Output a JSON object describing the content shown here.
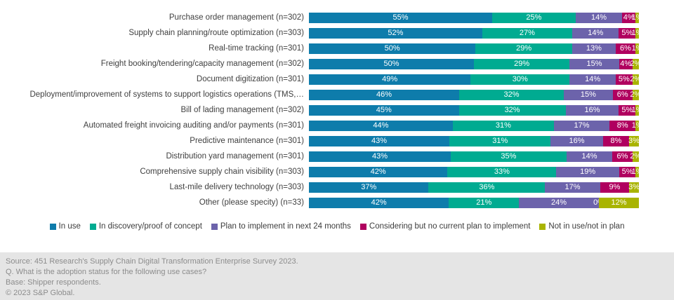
{
  "chart_data": {
    "type": "bar",
    "stacked": true,
    "orientation": "horizontal",
    "value_suffix": "%",
    "xlim": [
      0,
      100
    ],
    "grid": false,
    "legend_position": "bottom",
    "categories": [
      "Purchase order management (n=302)",
      "Supply chain planning/route optimization (n=303)",
      "Real-time tracking (n=301)",
      "Freight booking/tendering/capacity management (n=302)",
      "Document digitization (n=301)",
      "Deployment/improvement of systems to support logistics operations (TMS,…",
      "Bill of lading management (n=302)",
      "Automated freight invoicing auditing and/or payments (n=301)",
      "Predictive maintenance (n=301)",
      "Distribution yard management (n=301)",
      "Comprehensive supply chain visibility (n=303)",
      "Last-mile delivery technology (n=303)",
      "Other (please specity) (n=33)"
    ],
    "series": [
      {
        "name": "In use",
        "color": "#0e7cab",
        "values": [
          55,
          52,
          50,
          50,
          49,
          46,
          45,
          44,
          43,
          43,
          42,
          37,
          42
        ]
      },
      {
        "name": "In discovery/proof of concept",
        "color": "#00ab91",
        "values": [
          25,
          27,
          29,
          29,
          30,
          32,
          32,
          31,
          31,
          35,
          33,
          36,
          21
        ]
      },
      {
        "name": "Plan to implement in next 24 months",
        "color": "#6c63ab",
        "values": [
          14,
          14,
          13,
          15,
          14,
          15,
          16,
          17,
          16,
          14,
          19,
          17,
          24
        ]
      },
      {
        "name": "Considering but no current plan to implement",
        "color": "#b0005f",
        "values": [
          4,
          5,
          6,
          4,
          5,
          6,
          5,
          8,
          8,
          6,
          5,
          9,
          0
        ]
      },
      {
        "name": "Not in use/not in plan",
        "color": "#a9b400",
        "values": [
          1,
          1,
          1,
          2,
          2,
          2,
          1,
          1,
          3,
          2,
          1,
          3,
          12
        ]
      }
    ]
  },
  "footer": {
    "lines": [
      "Source: 451 Research's Supply Chain Digital Transformation Enterprise Survey 2023.",
      "Q. What is the adoption status for the following use cases?",
      "Base: Shipper respondents.",
      "© 2023 S&P Global."
    ]
  }
}
